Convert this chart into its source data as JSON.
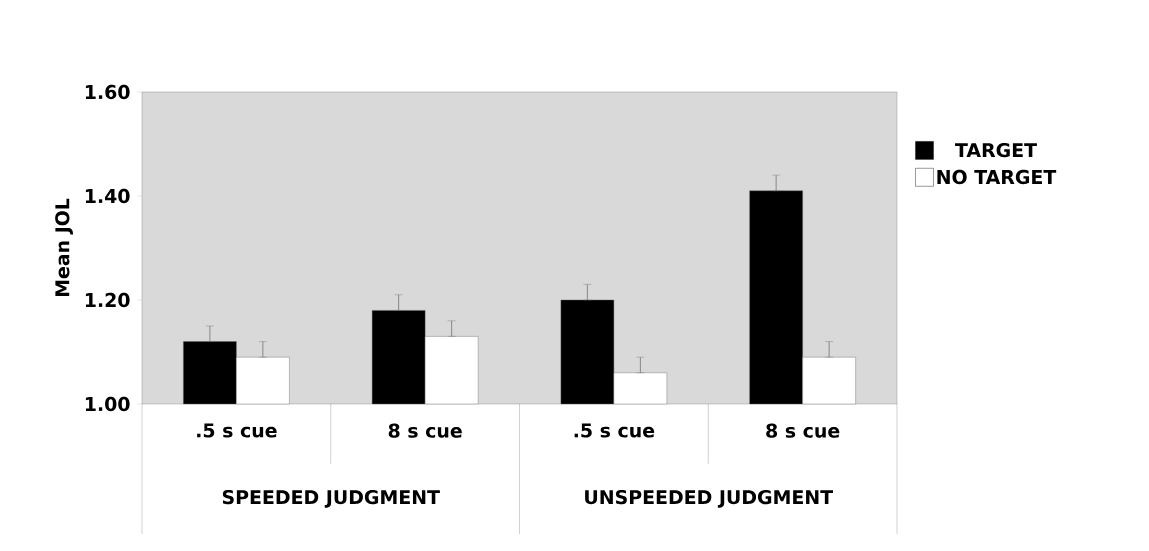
{
  "chart_data": {
    "type": "bar",
    "ylabel": "Mean JOL",
    "categories": [
      ".5 s cue",
      "8 s cue",
      ".5 s cue",
      "8 s cue"
    ],
    "annotations": [
      "SPEEDED JUDGMENT",
      "UNSPEEDED JUDGMENT"
    ],
    "series": [
      {
        "name": "TARGET",
        "color": "#000000",
        "values": [
          1.12,
          1.18,
          1.2,
          1.41
        ],
        "errors": [
          [
            1.12,
            1.15
          ],
          [
            1.18,
            1.21
          ],
          [
            1.2,
            1.23
          ],
          [
            1.41,
            1.44
          ]
        ]
      },
      {
        "name": "NO TARGET",
        "color": "#ffffff",
        "values": [
          1.09,
          1.13,
          1.06,
          1.09
        ],
        "errors": [
          [
            1.09,
            1.12
          ],
          [
            1.13,
            1.16
          ],
          [
            1.06,
            1.09
          ],
          [
            1.09,
            1.12
          ]
        ]
      }
    ],
    "ylim": [
      1.0,
      1.6
    ],
    "yticks": [
      {
        "value": 1.0,
        "label": "1.00"
      },
      {
        "value": 1.2,
        "label": "1.20"
      },
      {
        "value": 1.4,
        "label": "1.40"
      },
      {
        "value": 1.6,
        "label": "1.60"
      }
    ],
    "legend": "right",
    "grid": false
  }
}
